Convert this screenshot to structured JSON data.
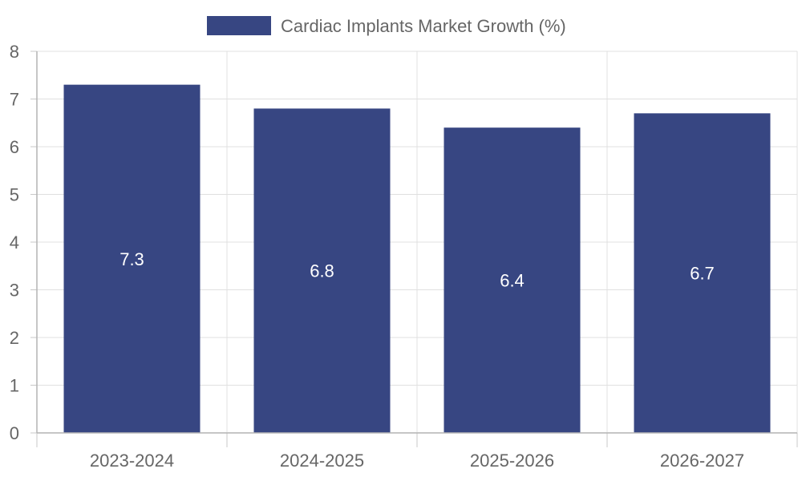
{
  "chart_data": {
    "type": "bar",
    "categories": [
      "2023-2024",
      "2024-2025",
      "2025-2026",
      "2026-2027"
    ],
    "series": [
      {
        "name": "Cardiac Implants Market Growth (%)",
        "values": [
          7.3,
          6.8,
          6.4,
          6.7
        ],
        "color": "#374682"
      }
    ],
    "data_labels": [
      "7.3",
      "6.8",
      "6.4",
      "6.7"
    ],
    "title": "",
    "xlabel": "",
    "ylabel": "",
    "ylim": [
      0,
      8
    ],
    "y_ticks": [
      "0",
      "1",
      "2",
      "3",
      "4",
      "5",
      "6",
      "7",
      "8"
    ],
    "grid": true,
    "legend_position": "top-center"
  }
}
